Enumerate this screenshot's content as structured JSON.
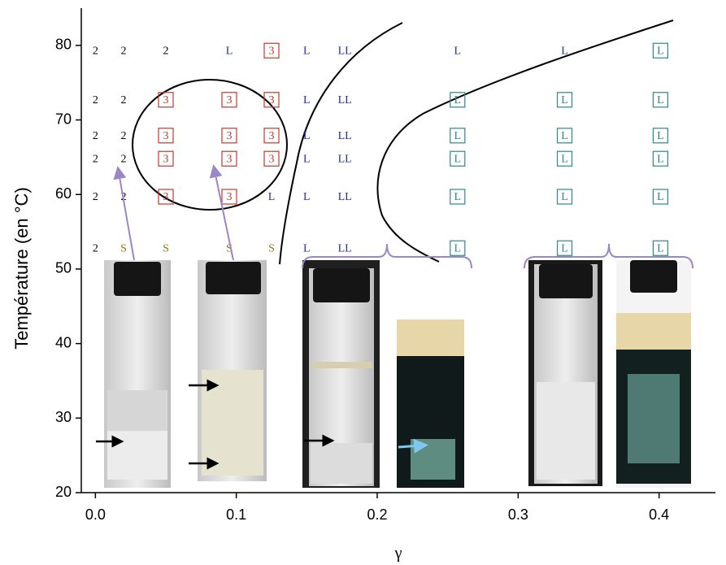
{
  "chart_data": {
    "type": "scatter",
    "x_label": "γ",
    "y_label": "Température (en °C)",
    "xlim": [
      -0.01,
      0.44
    ],
    "ylim": [
      20,
      85
    ],
    "xticks": [
      {
        "value": 0,
        "label": "0.0"
      },
      {
        "value": 0.1,
        "label": "0.1"
      },
      {
        "value": 0.2,
        "label": "0.2"
      },
      {
        "value": 0.3,
        "label": "0.3"
      },
      {
        "value": 0.4,
        "label": "0.4"
      }
    ],
    "yticks": [
      20,
      30,
      40,
      50,
      60,
      70,
      80
    ],
    "series": [
      {
        "marker": "2",
        "color": "#000000",
        "boxed": false,
        "x": [
          0,
          0.02,
          0.05,
          0,
          0.02,
          0,
          0.02,
          0,
          0.02,
          0,
          0.02,
          0
        ],
        "y": [
          79.3,
          79.3,
          79.3,
          72.7,
          72.7,
          67.9,
          67.9,
          64.8,
          64.8,
          59.7,
          59.7,
          52.8
        ]
      },
      {
        "marker": "S",
        "color": "#8a7d00",
        "boxed": false,
        "x": [
          0.02,
          0.05,
          0.095,
          0.125
        ],
        "y": [
          52.8,
          52.8,
          52.8,
          52.8
        ]
      },
      {
        "marker": "3",
        "color": "#c0392b",
        "boxed": true,
        "x": [
          0.125,
          0.05,
          0.095,
          0.125,
          0.05,
          0.095,
          0.125,
          0.05,
          0.095,
          0.125,
          0.05,
          0.095
        ],
        "y": [
          79.3,
          72.7,
          72.7,
          72.7,
          67.9,
          67.9,
          67.9,
          64.8,
          64.8,
          64.8,
          59.7,
          59.7
        ]
      },
      {
        "marker": "L",
        "color": "#1f2fa0",
        "boxed": false,
        "x": [
          0.095,
          0.15,
          0.257,
          0.333,
          0.15,
          0.15,
          0.15,
          0.125,
          0.15,
          0.15
        ],
        "y": [
          79.3,
          79.3,
          79.3,
          79.3,
          72.7,
          67.9,
          64.8,
          59.7,
          59.7,
          52.8
        ]
      },
      {
        "marker": "LL",
        "color": "#1f2fa0",
        "boxed": false,
        "x": [
          0.177,
          0.177,
          0.177,
          0.177,
          0.177,
          0.177
        ],
        "y": [
          79.3,
          72.7,
          67.9,
          64.8,
          59.7,
          52.8
        ]
      },
      {
        "marker": "L",
        "color": "#2a8a8a",
        "boxed": true,
        "x": [
          0.401,
          0.257,
          0.333,
          0.401,
          0.257,
          0.333,
          0.401,
          0.257,
          0.333,
          0.401,
          0.257,
          0.333,
          0.401,
          0.257,
          0.333,
          0.401
        ],
        "y": [
          79.3,
          72.7,
          72.7,
          72.7,
          67.9,
          67.9,
          67.9,
          64.8,
          64.8,
          64.8,
          59.7,
          59.7,
          59.7,
          52.8,
          52.8,
          52.8
        ]
      }
    ]
  }
}
